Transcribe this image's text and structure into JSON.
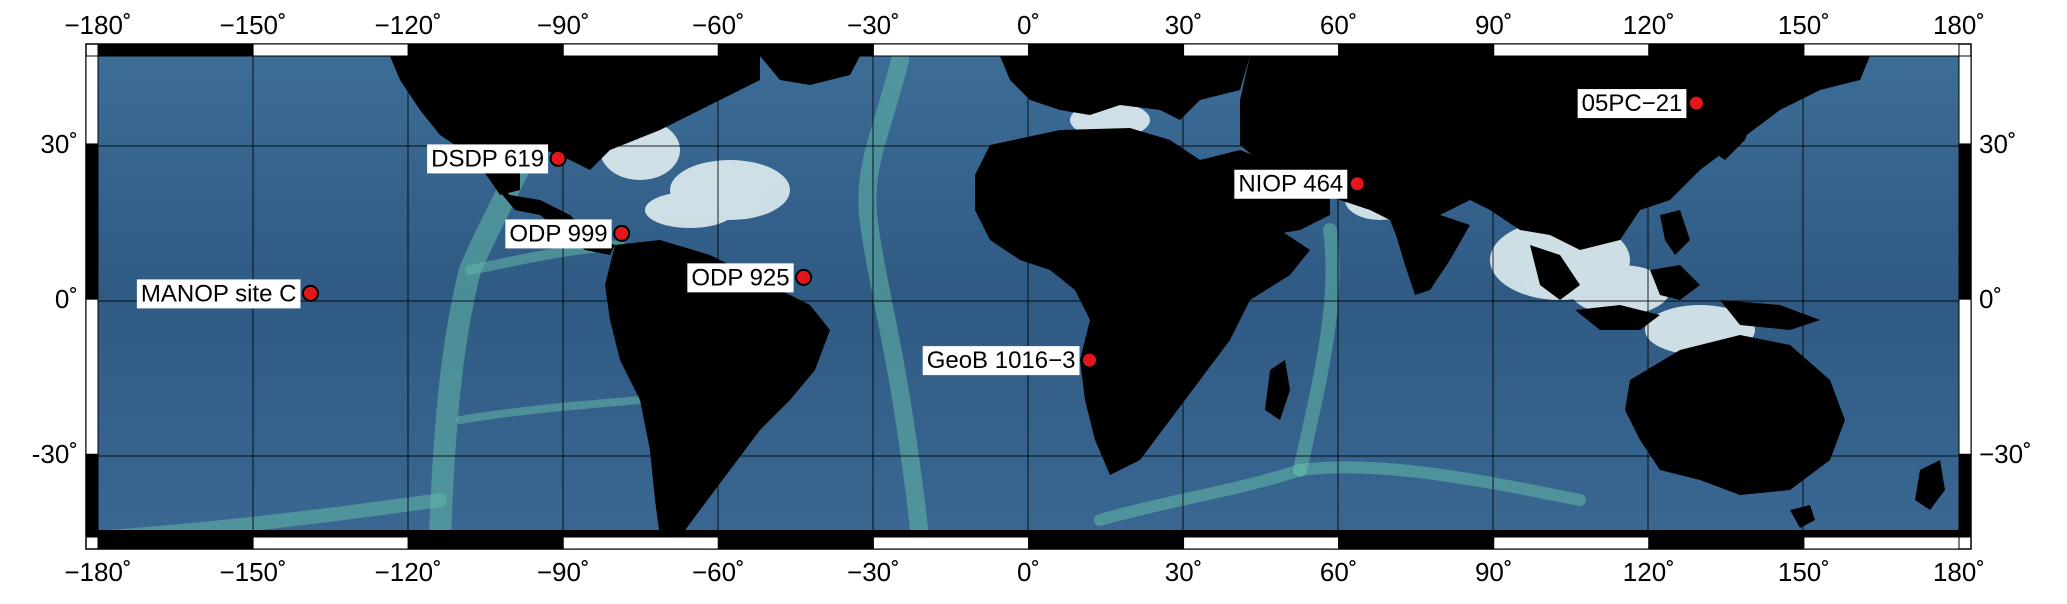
{
  "map": {
    "projection": "equirectangular",
    "lon_range": [
      -180,
      180
    ],
    "lat_range": [
      -46,
      47
    ],
    "graticule_lon_step": 30,
    "graticule_lat_step": 30,
    "frame_style": "alternating black-white"
  },
  "ticks": {
    "longitude": [
      "−180˚",
      "−150˚",
      "−120˚",
      "−90˚",
      "−60˚",
      "−30˚",
      "0˚",
      "30˚",
      "60˚",
      "90˚",
      "120˚",
      "150˚",
      "180˚"
    ],
    "latitude_left": [
      "30˚",
      "0˚",
      "-30˚"
    ],
    "latitude_right": [
      "30˚",
      "0˚",
      "−30˚"
    ]
  },
  "sites": [
    {
      "label": "DSDP 619",
      "lon": -91.0,
      "lat": 27.2
    },
    {
      "label": "ODP 999",
      "lon": -78.7,
      "lat": 12.7
    },
    {
      "label": "MANOP site C",
      "lon": -138.9,
      "lat": 1.1
    },
    {
      "label": "ODP 925",
      "lon": -43.5,
      "lat": 4.2
    },
    {
      "label": "GeoB 1016−3",
      "lon": 11.8,
      "lat": -11.8
    },
    {
      "label": "NIOP 464",
      "lon": 63.6,
      "lat": 22.3
    },
    {
      "label": "05PC−21",
      "lon": 129.2,
      "lat": 37.9
    }
  ],
  "colors": {
    "land": "#000000",
    "ocean_deep": "#2f5880",
    "ocean_mid": "#4a7fa8",
    "ridge": "#6fcfb0",
    "shelf": "#ffffff",
    "site_marker": "#e3161b",
    "frame": "#000000"
  }
}
